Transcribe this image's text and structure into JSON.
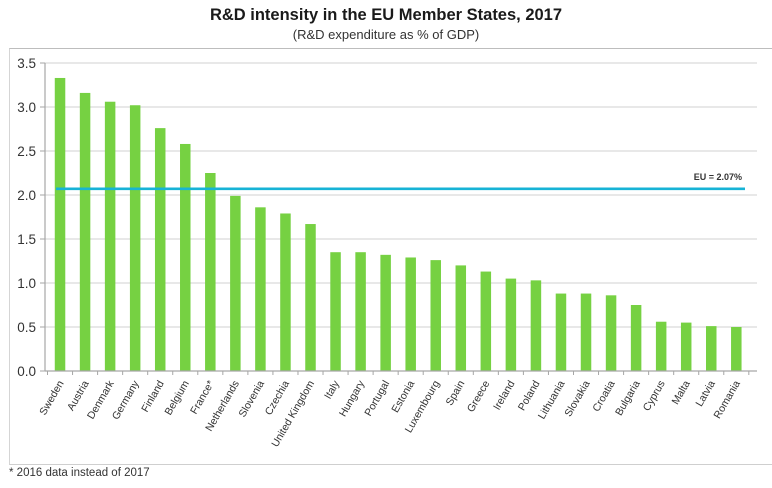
{
  "chart_data": {
    "type": "bar",
    "title": "R&D intensity in the EU Member States, 2017",
    "subtitle": "(R&D expenditure as % of GDP)",
    "xlabel": "",
    "ylabel": "",
    "ylim": [
      0,
      3.5
    ],
    "yticks": [
      "0.0",
      "0.5",
      "1.0",
      "1.5",
      "2.0",
      "2.5",
      "3.0",
      "3.5"
    ],
    "ytick_values": [
      0,
      0.5,
      1.0,
      1.5,
      2.0,
      2.5,
      3.0,
      3.5
    ],
    "grid": true,
    "categories": [
      "Sweden",
      "Austria",
      "Denmark",
      "Germany",
      "Finland",
      "Belgium",
      "France*",
      "Netherlands",
      "Slovenia",
      "Czechia",
      "United Kingdom",
      "Italy",
      "Hungary",
      "Portugal",
      "Estonia",
      "Luxembourg",
      "Spain",
      "Greece",
      "Ireland",
      "Poland",
      "Lithuania",
      "Slovakia",
      "Croatia",
      "Bulgaria",
      "Cyprus",
      "Malta",
      "Latvia",
      "Romania"
    ],
    "values": [
      3.33,
      3.16,
      3.06,
      3.02,
      2.76,
      2.58,
      2.25,
      1.99,
      1.86,
      1.79,
      1.67,
      1.35,
      1.35,
      1.32,
      1.29,
      1.26,
      1.2,
      1.13,
      1.05,
      1.03,
      0.88,
      0.88,
      0.86,
      0.75,
      0.56,
      0.55,
      0.51,
      0.5
    ],
    "reference_line": {
      "label": "EU = 2.07%",
      "value": 2.07
    },
    "colors": {
      "bar": "#76d142",
      "reference_line": "#17b3d6",
      "grid": "#d9d9d9",
      "axis": "#a6a6a6"
    },
    "footnote": "* 2016 data instead of 2017"
  }
}
